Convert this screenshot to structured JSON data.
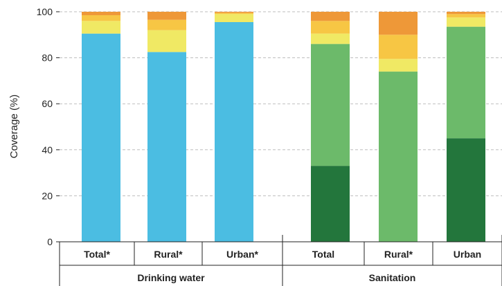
{
  "chart_data": {
    "type": "bar",
    "stacked": true,
    "ylabel": "Coverage (%)",
    "ylim": [
      0,
      100
    ],
    "yticks": [
      0,
      20,
      40,
      60,
      80,
      100
    ],
    "grid": true,
    "groups": [
      {
        "label": "Drinking water",
        "bars": [
          {
            "label": "Total*",
            "segments": [
              {
                "value": 90.5,
                "color": "#4bbde2"
              },
              {
                "value": 5.5,
                "color": "#f0e964"
              },
              {
                "value": 2.5,
                "color": "#f7c644"
              },
              {
                "value": 1.5,
                "color": "#ee9838"
              }
            ]
          },
          {
            "label": "Rural*",
            "segments": [
              {
                "value": 82.5,
                "color": "#4bbde2"
              },
              {
                "value": 9.5,
                "color": "#f0e964"
              },
              {
                "value": 4.5,
                "color": "#f7c644"
              },
              {
                "value": 3.5,
                "color": "#ee9838"
              }
            ]
          },
          {
            "label": "Urban*",
            "segments": [
              {
                "value": 95.5,
                "color": "#4bbde2"
              },
              {
                "value": 3.5,
                "color": "#f0e964"
              },
              {
                "value": 0.5,
                "color": "#f7c644"
              },
              {
                "value": 0.5,
                "color": "#ee9838"
              }
            ]
          }
        ]
      },
      {
        "label": "Sanitation",
        "bars": [
          {
            "label": "Total",
            "segments": [
              {
                "value": 33,
                "color": "#23763c"
              },
              {
                "value": 53,
                "color": "#6cba6a"
              },
              {
                "value": 4.5,
                "color": "#f0e964"
              },
              {
                "value": 5.5,
                "color": "#f7c644"
              },
              {
                "value": 4,
                "color": "#ee9838"
              }
            ]
          },
          {
            "label": "Rural*",
            "segments": [
              {
                "value": 74,
                "color": "#6cba6a"
              },
              {
                "value": 5.5,
                "color": "#f0e964"
              },
              {
                "value": 10.5,
                "color": "#f7c644"
              },
              {
                "value": 10,
                "color": "#ee9838"
              }
            ]
          },
          {
            "label": "Urban",
            "segments": [
              {
                "value": 45,
                "color": "#23763c"
              },
              {
                "value": 48.5,
                "color": "#6cba6a"
              },
              {
                "value": 4,
                "color": "#f0e964"
              },
              {
                "value": 1.5,
                "color": "#f7c644"
              },
              {
                "value": 1,
                "color": "#ee9838"
              }
            ]
          }
        ]
      }
    ]
  }
}
